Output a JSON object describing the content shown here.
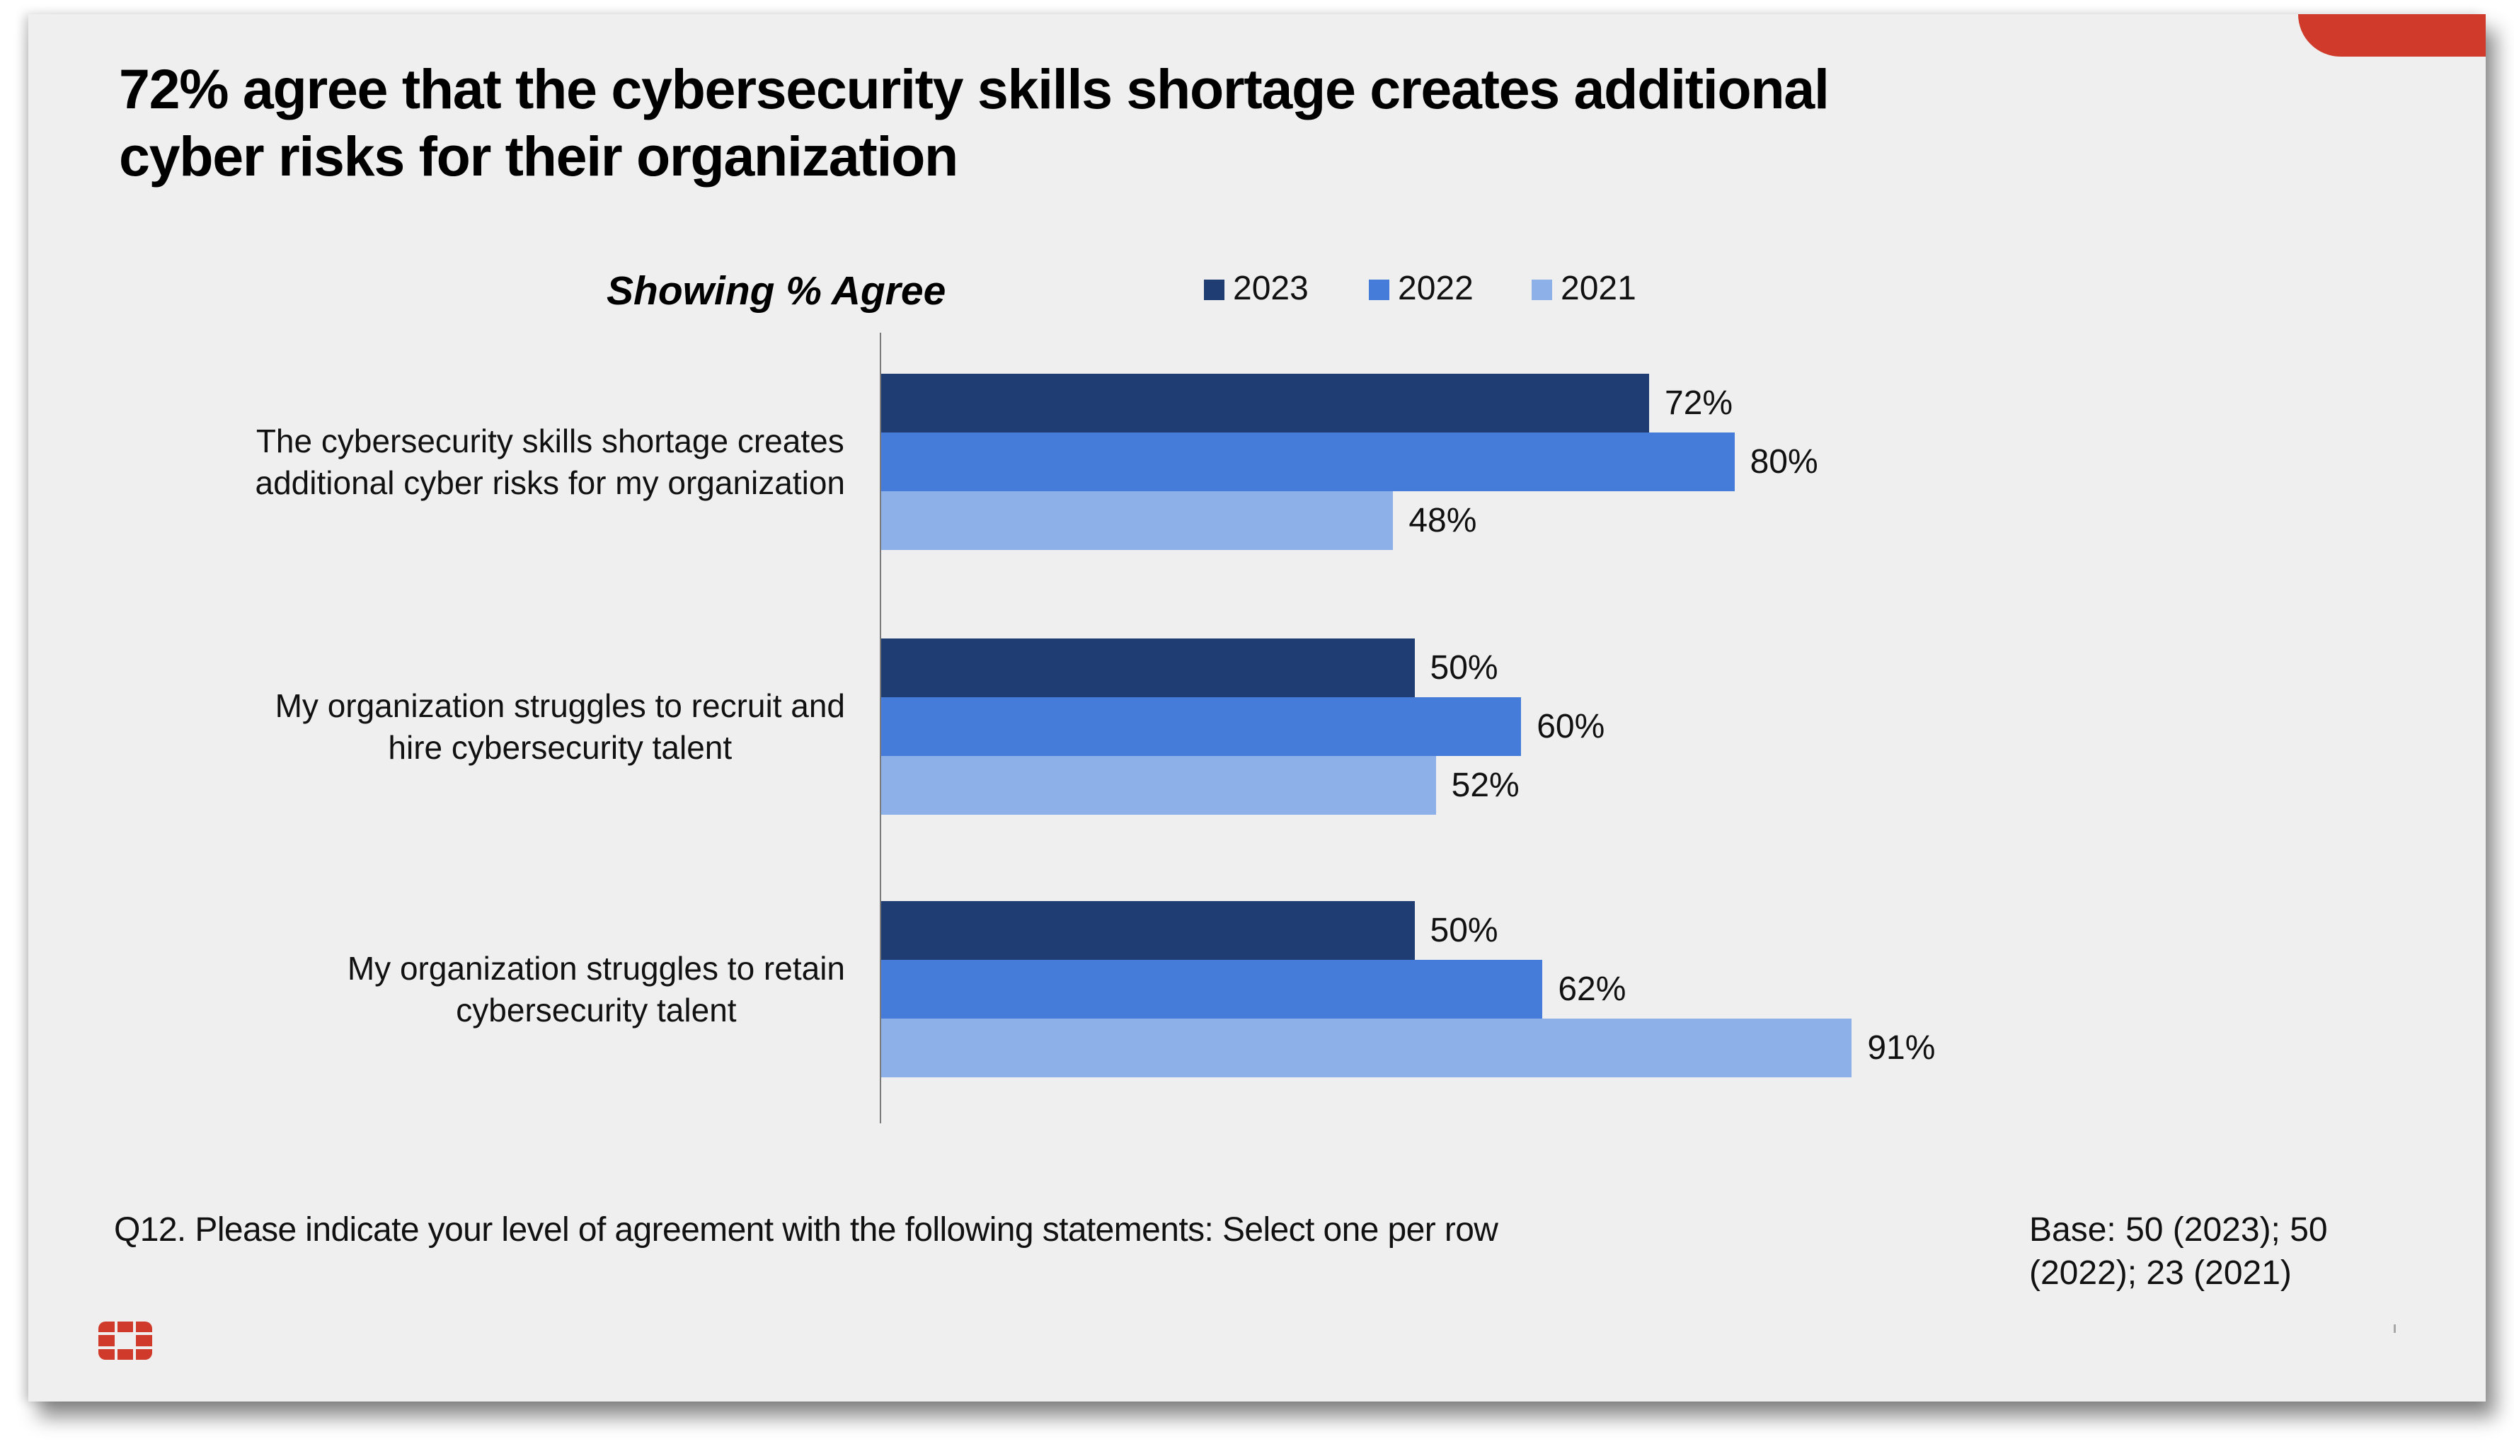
{
  "slide": {
    "title_lines": [
      "72% agree that the cybersecurity skills shortage creates additional",
      "cyber risks for their organization"
    ],
    "accent_color": "#cf3a2a",
    "background_color": "#efefef",
    "logo": "fortinet-grid-logo",
    "question": "Q12.  Please indicate your level of agreement with the following statements: Select one per row",
    "base": "Base: 50 (2023); 50 (2022); 23 (2021)",
    "page_mark": "ı"
  },
  "chart_data": {
    "type": "bar",
    "orientation": "horizontal",
    "title": "72% agree that the cybersecurity skills shortage creates additional cyber risks for their organization",
    "subtitle": "Showing % Agree",
    "xlabel": "",
    "ylabel": "",
    "xlim": [
      0,
      100
    ],
    "grid": false,
    "legend_position": "top",
    "categories": [
      [
        "The cybersecurity skills shortage creates",
        "additional cyber risks for my organization"
      ],
      [
        "My organization struggles to recruit and",
        "hire cybersecurity talent"
      ],
      [
        "My organization struggles to retain",
        "cybersecurity talent"
      ]
    ],
    "series": [
      {
        "name": "2023",
        "color": "#1f3d73",
        "values": [
          72,
          50,
          50
        ]
      },
      {
        "name": "2022",
        "color": "#457bd9",
        "values": [
          80,
          60,
          62
        ]
      },
      {
        "name": "2021",
        "color": "#8eb0e8",
        "values": [
          48,
          52,
          91
        ]
      }
    ],
    "value_suffix": "%"
  }
}
